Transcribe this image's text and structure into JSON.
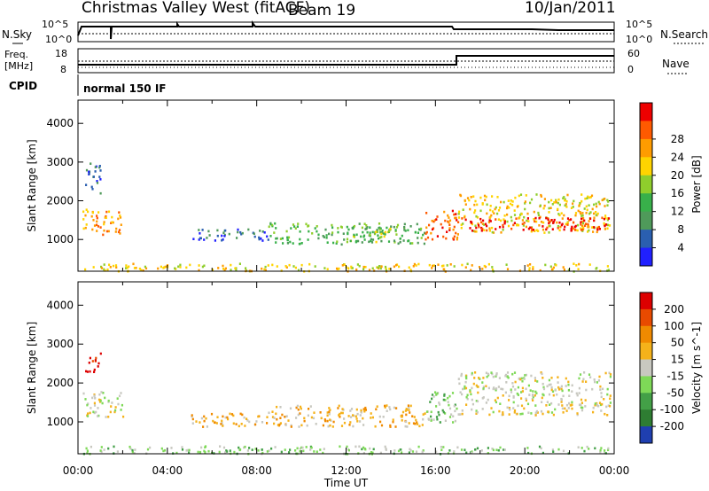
{
  "header": {
    "title": "Christmas Valley West (fitACF)",
    "beam": "Beam 19",
    "date": "10/Jan/2011"
  },
  "top_panels": {
    "nsky_label": "N.Sky",
    "nsky_ticks": [
      "10^5",
      "10^0"
    ],
    "nsearch_label": "N.Search",
    "nsearch_ticks": [
      "10^5",
      "10^0"
    ],
    "freq_label": "Freq.",
    "freq_unit": "[MHz]",
    "freq_ticks": [
      "18",
      "8"
    ],
    "nave_label": "Nave",
    "nave_ticks": [
      "60",
      "0"
    ],
    "cpid_label": "CPID",
    "cpid_value": "normal 150 IF"
  },
  "chart_data": [
    {
      "type": "heatmap",
      "name": "power",
      "ylabel": "Slant Range [km]",
      "ylim": [
        180,
        4600
      ],
      "yticks": [
        "1000",
        "2000",
        "3000",
        "4000"
      ],
      "xlim": [
        0,
        24
      ],
      "colorbar_label": "Power [dB]",
      "colorbar_ticks": [
        "4",
        "8",
        "12",
        "16",
        "20",
        "24",
        "28"
      ],
      "colorbar_colors": [
        "#2020ff",
        "#2a5fb0",
        "#4f9a5a",
        "#38b04a",
        "#8fce2c",
        "#ffd400",
        "#ff9c00",
        "#ff5a00",
        "#ee0000"
      ],
      "bands": [
        {
          "t0": 0.2,
          "t1": 2.0,
          "r0": 1150,
          "r1": 1800,
          "level": 6
        },
        {
          "t0": 0.3,
          "t1": 1.0,
          "r0": 2200,
          "r1": 3000,
          "level": 1
        },
        {
          "t0": 5.0,
          "t1": 8.5,
          "r0": 1000,
          "r1": 1300,
          "level": 1
        },
        {
          "t0": 8.5,
          "t1": 15.5,
          "r0": 900,
          "r1": 1450,
          "level": 3
        },
        {
          "t0": 12.0,
          "t1": 14.0,
          "r0": 950,
          "r1": 1350,
          "level": 4
        },
        {
          "t0": 15.5,
          "t1": 17.0,
          "r0": 1000,
          "r1": 1800,
          "level": 7
        },
        {
          "t0": 17.0,
          "t1": 23.8,
          "r0": 1200,
          "r1": 2200,
          "level": 5
        },
        {
          "t0": 17.0,
          "t1": 23.8,
          "r0": 1250,
          "r1": 1600,
          "level": 8
        },
        {
          "t0": 0.2,
          "t1": 23.8,
          "r0": 200,
          "r1": 400,
          "level": 5
        }
      ]
    },
    {
      "type": "heatmap",
      "name": "velocity",
      "ylabel": "Slant Range [km]",
      "ylim": [
        180,
        4600
      ],
      "yticks": [
        "1000",
        "2000",
        "3000",
        "4000"
      ],
      "xlim": [
        0,
        24
      ],
      "xlabel": "Time UT",
      "xticks": [
        "00:00",
        "04:00",
        "08:00",
        "12:00",
        "16:00",
        "20:00",
        "00:00"
      ],
      "colorbar_label": "Velocity [m s^-1]",
      "colorbar_ticks": [
        "200",
        "100",
        "50",
        "15",
        "-15",
        "-50",
        "-100",
        "-200"
      ],
      "colorbar_colors": [
        "#1f3fb0",
        "#2e7d32",
        "#43a047",
        "#7ed957",
        "#c8c8c0",
        "#f5b21a",
        "#f08a00",
        "#e84a00",
        "#dd0000"
      ],
      "bands": [
        {
          "t0": 0.2,
          "t1": 2.0,
          "r0": 1150,
          "r1": 1800,
          "level": 4
        },
        {
          "t0": 0.3,
          "t1": 1.0,
          "r0": 2300,
          "r1": 2800,
          "level": 8
        },
        {
          "t0": 5.0,
          "t1": 8.5,
          "r0": 900,
          "r1": 1250,
          "level": 5
        },
        {
          "t0": 8.5,
          "t1": 15.5,
          "r0": 900,
          "r1": 1450,
          "level": 5
        },
        {
          "t0": 15.5,
          "t1": 17.0,
          "r0": 1000,
          "r1": 1800,
          "level": 3
        },
        {
          "t0": 17.0,
          "t1": 23.8,
          "r0": 1200,
          "r1": 2300,
          "level": 4
        },
        {
          "t0": 0.2,
          "t1": 23.8,
          "r0": 200,
          "r1": 400,
          "level": 3
        }
      ]
    }
  ]
}
